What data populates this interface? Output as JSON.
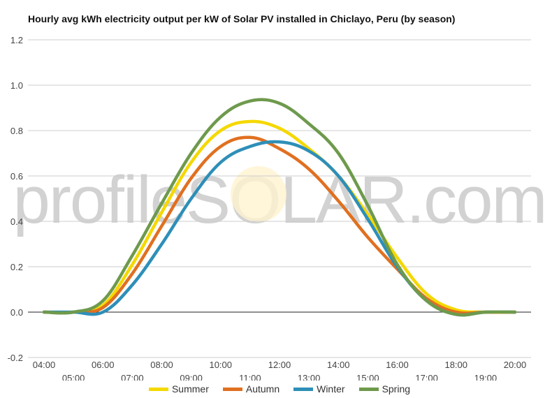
{
  "chart_data": {
    "type": "line",
    "title": "Hourly avg kWh electricity output per kW of Solar PV installed in Chiclayo, Peru (by season)",
    "xlabel": "",
    "ylabel": "",
    "x": [
      "04:00",
      "05:00",
      "06:00",
      "07:00",
      "08:00",
      "09:00",
      "10:00",
      "11:00",
      "12:00",
      "13:00",
      "14:00",
      "15:00",
      "16:00",
      "17:00",
      "18:00",
      "19:00",
      "20:00"
    ],
    "ylim": [
      -0.2,
      1.2
    ],
    "yticks": [
      "1.2",
      "1.0",
      "0.8",
      "0.6",
      "0.4",
      "0.2",
      "0.0",
      "-0.2"
    ],
    "grid": true,
    "legend": "bottom",
    "watermark": "profileSOLAR.com",
    "series": [
      {
        "name": "Summer",
        "color": "#f5d800",
        "values": [
          0.0,
          0.0,
          0.03,
          0.21,
          0.44,
          0.66,
          0.8,
          0.84,
          0.81,
          0.72,
          0.6,
          0.43,
          0.24,
          0.08,
          0.01,
          0.0,
          0.0
        ]
      },
      {
        "name": "Autumn",
        "color": "#e07020",
        "values": [
          0.0,
          0.0,
          0.02,
          0.17,
          0.38,
          0.59,
          0.73,
          0.77,
          0.72,
          0.63,
          0.49,
          0.33,
          0.19,
          0.06,
          0.0,
          0.0,
          0.0
        ]
      },
      {
        "name": "Winter",
        "color": "#2e8fb8",
        "values": [
          0.0,
          0.0,
          0.0,
          0.12,
          0.3,
          0.5,
          0.66,
          0.73,
          0.75,
          0.71,
          0.6,
          0.41,
          0.2,
          0.05,
          -0.01,
          0.0,
          0.0
        ]
      },
      {
        "name": "Spring",
        "color": "#6e9a4c",
        "values": [
          0.0,
          0.0,
          0.05,
          0.25,
          0.48,
          0.7,
          0.86,
          0.93,
          0.92,
          0.83,
          0.7,
          0.47,
          0.21,
          0.05,
          -0.01,
          0.0,
          0.0
        ]
      }
    ]
  }
}
